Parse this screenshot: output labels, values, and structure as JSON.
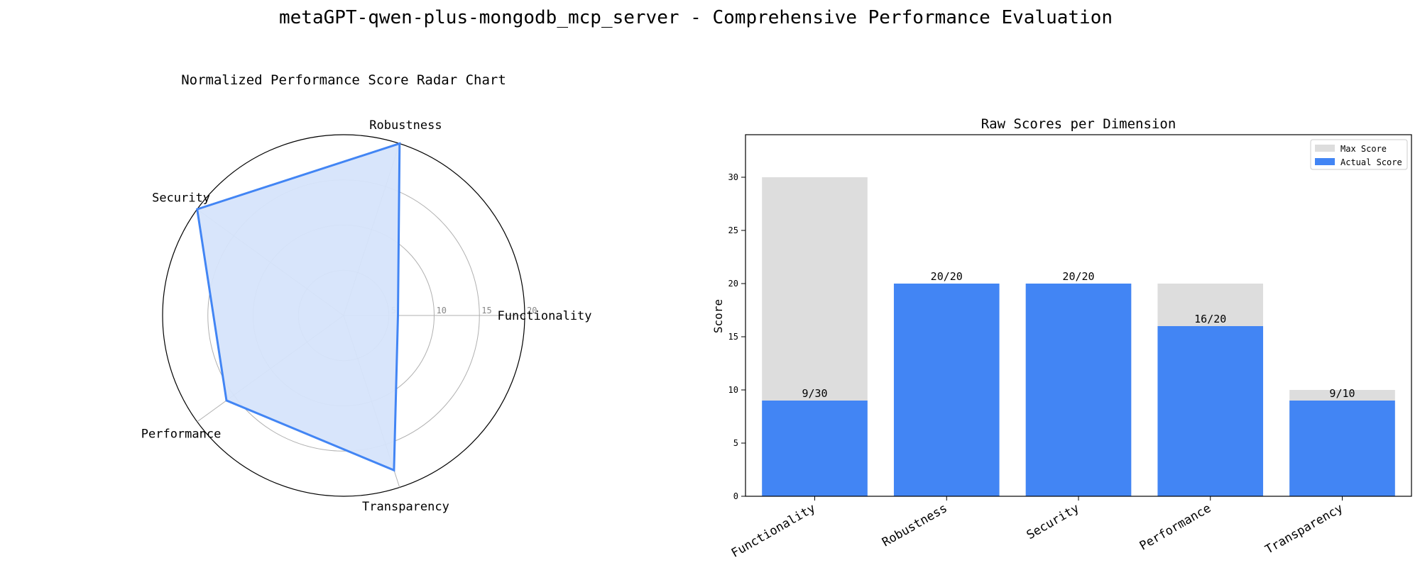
{
  "suptitle": "metaGPT-qwen-plus-mongodb_mcp_server - Comprehensive Performance Evaluation",
  "chart_data": [
    {
      "type": "radar",
      "title": "Normalized Performance Score Radar Chart",
      "categories": [
        "Functionality",
        "Robustness",
        "Security",
        "Performance",
        "Transparency"
      ],
      "values": [
        6,
        20,
        20,
        16,
        18
      ],
      "rmax": 20,
      "rticks": [
        5,
        10,
        15,
        20
      ],
      "grid": true,
      "color": "#4285f4",
      "fill_color": "#d6e4fb"
    },
    {
      "type": "bar",
      "title": "Raw Scores per Dimension",
      "ylabel": "Score",
      "categories": [
        "Functionality",
        "Robustness",
        "Security",
        "Performance",
        "Transparency"
      ],
      "series": [
        {
          "name": "Max Score",
          "values": [
            30,
            20,
            20,
            20,
            10
          ],
          "color": "#dddddd"
        },
        {
          "name": "Actual Score",
          "values": [
            9,
            20,
            20,
            16,
            9
          ],
          "color": "#4285f4"
        }
      ],
      "data_labels": [
        "9/30",
        "20/20",
        "20/20",
        "16/20",
        "9/10"
      ],
      "ylim": [
        0,
        34
      ],
      "yticks": [
        0,
        5,
        10,
        15,
        20,
        25,
        30
      ],
      "legend": "top-right"
    }
  ]
}
